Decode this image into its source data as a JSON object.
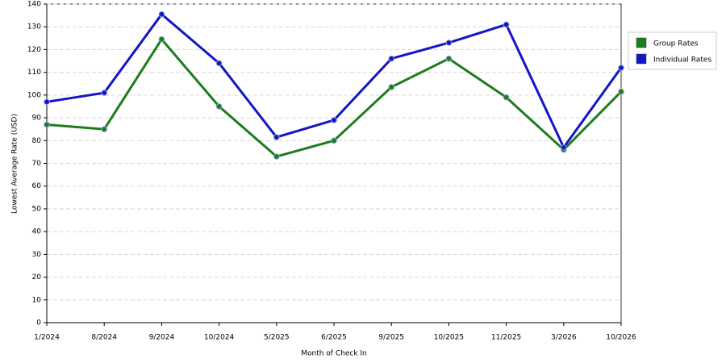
{
  "chart_data": {
    "type": "line",
    "x_label": "Month of Check In",
    "y_label": "Lowest Average Rate (USD)",
    "categories": [
      "1/2024",
      "8/2024",
      "9/2024",
      "10/2024",
      "5/2025",
      "6/2025",
      "9/2025",
      "10/2025",
      "11/2025",
      "3/2026",
      "10/2026"
    ],
    "series": [
      {
        "name": "Group Rates",
        "color": "#1c7d1c",
        "values": [
          87,
          85,
          124.5,
          95,
          73,
          80,
          103.5,
          116,
          99,
          76,
          101.5
        ]
      },
      {
        "name": "Individual Rates",
        "color": "#1414c8",
        "values": [
          97,
          101,
          135.5,
          114,
          81.5,
          89,
          116,
          123,
          131,
          77,
          112
        ]
      }
    ],
    "ylim": [
      0,
      140
    ],
    "yticks": [
      0,
      10,
      20,
      30,
      40,
      50,
      60,
      70,
      80,
      90,
      100,
      110,
      120,
      130,
      140
    ],
    "grid": true,
    "legend": "right"
  }
}
